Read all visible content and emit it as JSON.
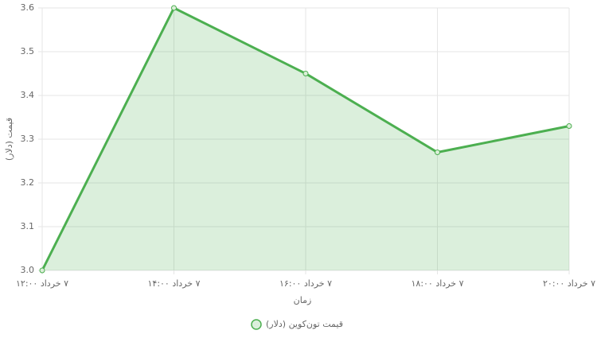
{
  "chart_data": {
    "type": "line",
    "categories": [
      "۷ خرداد ۱۲:۰۰",
      "۷ خرداد ۱۴:۰۰",
      "۷ خرداد ۱۶:۰۰",
      "۷ خرداد ۱۸:۰۰",
      "۷ خرداد ۲۰:۰۰"
    ],
    "series": [
      {
        "name": "قیمت تون‌کوین (دلار)",
        "color": "#4caf50",
        "values": [
          3.0,
          3.6,
          3.45,
          3.27,
          3.33
        ]
      }
    ],
    "x_label": "زمان",
    "y_label": "قیمت (دلار)",
    "ylim": [
      3.0,
      3.6
    ],
    "yticks": [
      {
        "value": 3,
        "label": "3.0"
      },
      3.1,
      3.2,
      3.3,
      3.4,
      3.5,
      3.6
    ],
    "grid": true,
    "fill": true,
    "legend": "bottom"
  }
}
